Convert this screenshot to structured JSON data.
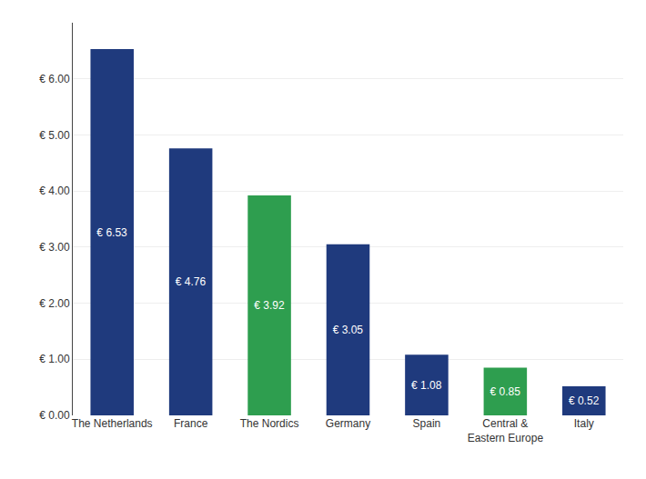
{
  "chart_data": {
    "type": "bar",
    "categories": [
      "The Netherlands",
      "France",
      "The Nordics",
      "Germany",
      "Spain",
      "Central &\nEastern Europe",
      "Italy"
    ],
    "values": [
      6.53,
      4.76,
      3.92,
      3.05,
      1.08,
      0.85,
      0.52
    ],
    "value_labels": [
      "€ 6.53",
      "€ 4.76",
      "€ 3.92",
      "€ 3.05",
      "€ 1.08",
      "€ 0.85",
      "€ 0.52"
    ],
    "data_labels": true,
    "colors": [
      "#1f3a7d",
      "#1f3a7d",
      "#2e9e4f",
      "#1f3a7d",
      "#1f3a7d",
      "#2e9e4f",
      "#1f3a7d"
    ],
    "ylim": [
      0,
      7.0
    ],
    "yticks": [
      {
        "value": 0,
        "label": "€ 0.00"
      },
      {
        "value": 1,
        "label": "€ 1.00"
      },
      {
        "value": 2,
        "label": "€ 2.00"
      },
      {
        "value": 3,
        "label": "€ 3.00"
      },
      {
        "value": 4,
        "label": "€ 4.00"
      },
      {
        "value": 5,
        "label": "€ 5.00"
      },
      {
        "value": 6,
        "label": "€ 6.00"
      }
    ],
    "grid": true
  }
}
